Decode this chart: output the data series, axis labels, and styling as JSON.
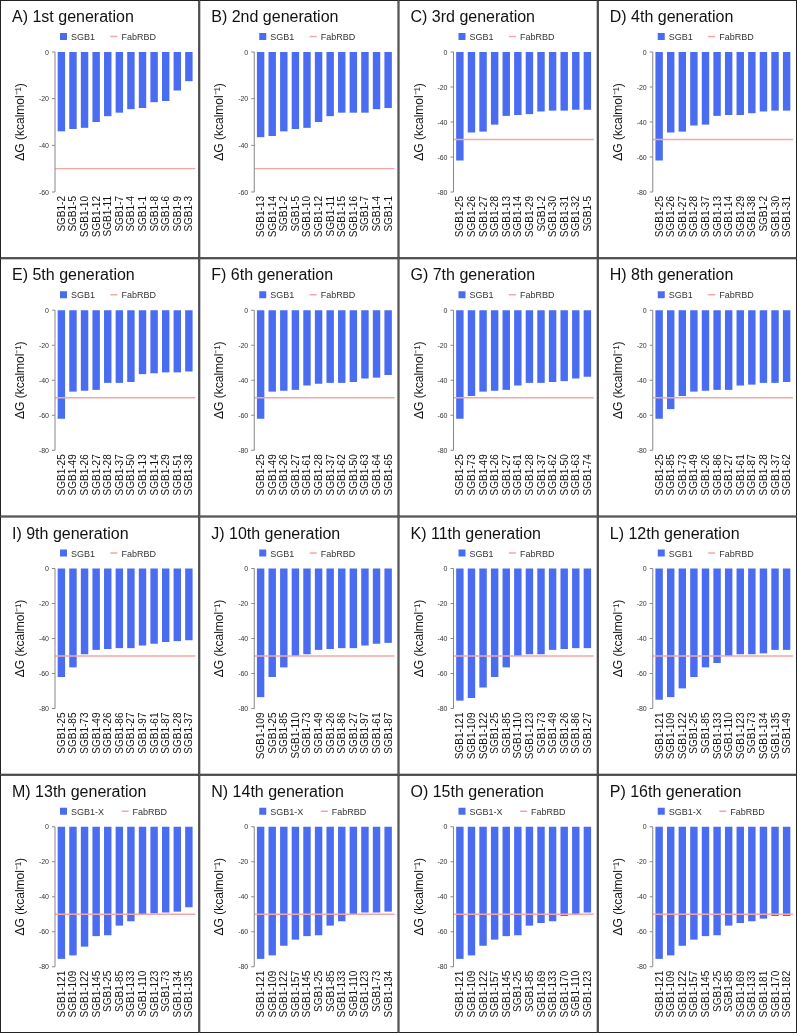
{
  "chart_data": [
    {
      "type": "bar",
      "title": "A) 1st generation",
      "ylabel": "ΔG (kcalmol⁻¹)",
      "legend": "top",
      "categories": [
        "SGB1-2",
        "SGB1-5",
        "SGB1-10",
        "SGB1-12",
        "SGB1-11",
        "SGB1-7",
        "SGB1-4",
        "SGB1-1",
        "SGB1-8",
        "SGB1-6",
        "SGB1-9",
        "SGB1-3"
      ],
      "series": [
        {
          "name": "SGB1",
          "color": "#4a6cf0",
          "values": [
            -34,
            -33,
            -32.5,
            -30,
            -27.5,
            -26,
            -24.5,
            -24,
            -21.5,
            -21,
            -16.5,
            -12.5
          ]
        }
      ],
      "ylim": [
        -60,
        0
      ],
      "yticks": [
        0,
        -20,
        -40,
        -60
      ],
      "ref_lines": [
        {
          "axis": "y",
          "value": -50,
          "label": "FabRBD",
          "color": "#f4a6a6"
        }
      ]
    },
    {
      "type": "bar",
      "title": "B) 2nd generation",
      "ylabel": "ΔG (kcalmol⁻¹)",
      "legend": "top",
      "categories": [
        "SGB1-13",
        "SGB1-14",
        "SGB1-2",
        "SGB1-5",
        "SGB1-10",
        "SGB1-12",
        "SGB1-11",
        "SGB1-15",
        "SGB1-16",
        "SGB1-7",
        "SGB1-4",
        "SGB1-1"
      ],
      "series": [
        {
          "name": "SGB1",
          "color": "#4a6cf0",
          "values": [
            -36.5,
            -36,
            -34,
            -33,
            -32.5,
            -30,
            -27.5,
            -26,
            -26,
            -26,
            -24.5,
            -24
          ]
        }
      ],
      "ylim": [
        -60,
        0
      ],
      "yticks": [
        0,
        -20,
        -40,
        -60
      ],
      "ref_lines": [
        {
          "axis": "y",
          "value": -50,
          "label": "FabRBD",
          "color": "#f4a6a6"
        }
      ]
    },
    {
      "type": "bar",
      "title": "C) 3rd generation",
      "ylabel": "ΔG (kcalmol⁻¹)",
      "legend": "top",
      "categories": [
        "SGB1-25",
        "SGB1-26",
        "SGB1-27",
        "SGB1-28",
        "SGB1-13",
        "SGB1-14",
        "SGB1-29",
        "SGB1-2",
        "SGB1-30",
        "SGB1-31",
        "SGB1-32",
        "SGB1-5"
      ],
      "series": [
        {
          "name": "SGB1",
          "color": "#4a6cf0",
          "values": [
            -62,
            -46,
            -45.5,
            -41.5,
            -36.5,
            -36,
            -35.5,
            -34,
            -33.5,
            -33.5,
            -33,
            -33
          ]
        }
      ],
      "ylim": [
        -80,
        0
      ],
      "yticks": [
        0,
        -20,
        -40,
        -60,
        -80
      ],
      "ref_lines": [
        {
          "axis": "y",
          "value": -50,
          "label": "FabRBD",
          "color": "#f4a6a6"
        }
      ]
    },
    {
      "type": "bar",
      "title": "D) 4th generation",
      "ylabel": "ΔG (kcalmol⁻¹)",
      "legend": "top",
      "categories": [
        "SGB1-25",
        "SGB1-26",
        "SGB1-27",
        "SGB1-28",
        "SGB1-37",
        "SGB1-13",
        "SGB1-14",
        "SGB1-29",
        "SGB1-38",
        "SGB1-2",
        "SGB1-30",
        "SGB1-31"
      ],
      "series": [
        {
          "name": "SGB1",
          "color": "#4a6cf0",
          "values": [
            -62,
            -46,
            -45.5,
            -42,
            -41.5,
            -36.5,
            -36,
            -36,
            -35,
            -34,
            -33.5,
            -33.5
          ]
        }
      ],
      "ylim": [
        -80,
        0
      ],
      "yticks": [
        0,
        -20,
        -40,
        -60,
        -80
      ],
      "ref_lines": [
        {
          "axis": "y",
          "value": -50,
          "label": "FabRBD",
          "color": "#f4a6a6"
        }
      ]
    },
    {
      "type": "bar",
      "title": "E) 5th generation",
      "ylabel": "ΔG (kcalmol⁻¹)",
      "legend": "top",
      "categories": [
        "SGB1-25",
        "SGB1-49",
        "SGB1-26",
        "SGB1-27",
        "SGB1-28",
        "SGB1-37",
        "SGB1-50",
        "SGB1-13",
        "SGB1-14",
        "SGB1-29",
        "SGB1-51",
        "SGB1-38"
      ],
      "series": [
        {
          "name": "SGB1",
          "color": "#4a6cf0",
          "values": [
            -62,
            -46.5,
            -46,
            -45.5,
            -41.5,
            -41.5,
            -41,
            -36.5,
            -36,
            -35.5,
            -35.5,
            -35
          ]
        }
      ],
      "ylim": [
        -80,
        0
      ],
      "yticks": [
        0,
        -20,
        -40,
        -60,
        -80
      ],
      "ref_lines": [
        {
          "axis": "y",
          "value": -50,
          "label": "FabRBD",
          "color": "#f4a6a6"
        }
      ]
    },
    {
      "type": "bar",
      "title": "F) 6th generation",
      "ylabel": "ΔG (kcalmol⁻¹)",
      "legend": "top",
      "categories": [
        "SGB1-25",
        "SGB1-49",
        "SGB1-26",
        "SGB1-27",
        "SGB1-61",
        "SGB1-28",
        "SGB1-37",
        "SGB1-62",
        "SGB1-50",
        "SGB1-63",
        "SGB1-64",
        "SGB1-65"
      ],
      "series": [
        {
          "name": "SGB1",
          "color": "#4a6cf0",
          "values": [
            -62,
            -46.5,
            -46,
            -45.5,
            -43,
            -42,
            -41.5,
            -41.5,
            -41,
            -39,
            -38.5,
            -37
          ]
        }
      ],
      "ylim": [
        -80,
        0
      ],
      "yticks": [
        0,
        -20,
        -40,
        -60,
        -80
      ],
      "ref_lines": [
        {
          "axis": "y",
          "value": -50,
          "label": "FabRBD",
          "color": "#f4a6a6"
        }
      ]
    },
    {
      "type": "bar",
      "title": "G) 7th generation",
      "ylabel": "ΔG (kcalmol⁻¹)",
      "legend": "top",
      "categories": [
        "SGB1-25",
        "SGB1-73",
        "SGB1-49",
        "SGB1-26",
        "SGB1-27",
        "SGB1-61",
        "SGB1-28",
        "SGB1-37",
        "SGB1-62",
        "SGB1-50",
        "SGB1-63",
        "SGB1-74"
      ],
      "series": [
        {
          "name": "SGB1",
          "color": "#4a6cf0",
          "values": [
            -62,
            -49,
            -46.5,
            -46,
            -45.5,
            -43,
            -41.5,
            -41.5,
            -41,
            -40.5,
            -39,
            -38
          ]
        }
      ],
      "ylim": [
        -80,
        0
      ],
      "yticks": [
        0,
        -20,
        -40,
        -60,
        -80
      ],
      "ref_lines": [
        {
          "axis": "y",
          "value": -50,
          "label": "FabRBD",
          "color": "#f4a6a6"
        }
      ]
    },
    {
      "type": "bar",
      "title": "H) 8th generation",
      "ylabel": "ΔG (kcalmol⁻¹)",
      "legend": "top",
      "categories": [
        "SGB1-25",
        "SGB1-85",
        "SGB1-73",
        "SGB1-49",
        "SGB1-26",
        "SGB1-86",
        "SGB1-27",
        "SGB1-61",
        "SGB1-87",
        "SGB1-28",
        "SGB1-37",
        "SGB1-62"
      ],
      "series": [
        {
          "name": "SGB1",
          "color": "#4a6cf0",
          "values": [
            -62,
            -56.5,
            -49,
            -46.5,
            -46,
            -45.5,
            -45.5,
            -43,
            -42.5,
            -41.5,
            -41.5,
            -41
          ]
        }
      ],
      "ylim": [
        -80,
        0
      ],
      "yticks": [
        0,
        -20,
        -40,
        -60,
        -80
      ],
      "ref_lines": [
        {
          "axis": "y",
          "value": -50,
          "label": "FabRBD",
          "color": "#f4a6a6"
        }
      ]
    },
    {
      "type": "bar",
      "title": "I) 9th generation",
      "ylabel": "ΔG (kcalmol⁻¹)",
      "legend": "top",
      "categories": [
        "SGB1-25",
        "SGB1-85",
        "SGB1-73",
        "SGB1-49",
        "SGB1-26",
        "SGB1-86",
        "SGB1-27",
        "SGB1-97",
        "SGB1-61",
        "SGB1-87",
        "SGB1-28",
        "SGB1-37"
      ],
      "series": [
        {
          "name": "SGB1",
          "color": "#4a6cf0",
          "values": [
            -62,
            -56.5,
            -49,
            -46.5,
            -46,
            -45.5,
            -45.5,
            -44,
            -43,
            -42,
            -41.5,
            -41
          ]
        }
      ],
      "ylim": [
        -80,
        0
      ],
      "yticks": [
        0,
        -20,
        -40,
        -60,
        -80
      ],
      "ref_lines": [
        {
          "axis": "y",
          "value": -50,
          "label": "FabRBD",
          "color": "#f4a6a6"
        }
      ]
    },
    {
      "type": "bar",
      "title": "J) 10th generation",
      "ylabel": "ΔG (kcalmol⁻¹)",
      "legend": "top",
      "categories": [
        "SGB1-109",
        "SGB1-25",
        "SGB1-85",
        "SGB1-110",
        "SGB1-73",
        "SGB1-49",
        "SGB1-26",
        "SGB1-86",
        "SGB1-27",
        "SGB1-97",
        "SGB1-61",
        "SGB1-87"
      ],
      "series": [
        {
          "name": "SGB1",
          "color": "#4a6cf0",
          "values": [
            -73.5,
            -62,
            -56.5,
            -50,
            -49,
            -46.5,
            -46,
            -45.5,
            -45.5,
            -44,
            -43,
            -42.5
          ]
        }
      ],
      "ylim": [
        -80,
        0
      ],
      "yticks": [
        0,
        -20,
        -40,
        -60,
        -80
      ],
      "ref_lines": [
        {
          "axis": "y",
          "value": -50,
          "label": "FabRBD",
          "color": "#f4a6a6"
        }
      ]
    },
    {
      "type": "bar",
      "title": "K) 11th generation",
      "ylabel": "ΔG (kcalmol⁻¹)",
      "legend": "top",
      "categories": [
        "SGB1-121",
        "SGB1-109",
        "SGB1-122",
        "SGB1-25",
        "SGB1-85",
        "SGB1-110",
        "SGB1-123",
        "SGB1-73",
        "SGB1-49",
        "SGB1-26",
        "SGB1-86",
        "SGB1-27"
      ],
      "series": [
        {
          "name": "SGB1",
          "color": "#4a6cf0",
          "values": [
            -75.5,
            -74,
            -68,
            -62,
            -56.5,
            -50,
            -49,
            -49,
            -46.5,
            -46,
            -45.5,
            -45.5
          ]
        }
      ],
      "ylim": [
        -80,
        0
      ],
      "yticks": [
        0,
        -20,
        -40,
        -60,
        -80
      ],
      "ref_lines": [
        {
          "axis": "y",
          "value": -50,
          "label": "FabRBD",
          "color": "#f4a6a6"
        }
      ]
    },
    {
      "type": "bar",
      "title": "L) 12th generation",
      "ylabel": "ΔG (kcalmol⁻¹)",
      "legend": "top",
      "categories": [
        "SGB1-121",
        "SGB1-109",
        "SGB1-122",
        "SGB1-25",
        "SGB1-85",
        "SGB1-133",
        "SGB1-110",
        "SGB1-123",
        "SGB1-73",
        "SGB1-134",
        "SGB1-135",
        "SGB1-49"
      ],
      "series": [
        {
          "name": "SGB1",
          "color": "#4a6cf0",
          "values": [
            -75,
            -73.5,
            -68.5,
            -62,
            -56.5,
            -54,
            -50,
            -49,
            -49,
            -48.5,
            -46.5,
            -46.5
          ]
        }
      ],
      "ylim": [
        -80,
        0
      ],
      "yticks": [
        0,
        -20,
        -40,
        -60,
        -80
      ],
      "ref_lines": [
        {
          "axis": "y",
          "value": -50,
          "label": "FabRBD",
          "color": "#f4a6a6"
        }
      ]
    },
    {
      "type": "bar",
      "title": "M) 13th generation",
      "ylabel": "ΔG (kcalmol⁻¹)",
      "legend": "top",
      "categories": [
        "SGB1-121",
        "SGB1-109",
        "SGB1-122",
        "SGB1-145",
        "SGB1-25",
        "SGB1-85",
        "SGB1-133",
        "SGB1-110",
        "SGB1-123",
        "SGB1-73",
        "SGB1-134",
        "SGB1-135"
      ],
      "series": [
        {
          "name": "SGB1-X",
          "color": "#4a6cf0",
          "values": [
            -75.5,
            -73.5,
            -68.5,
            -62.5,
            -62,
            -56.5,
            -54,
            -50,
            -49.5,
            -49,
            -48.5,
            -46
          ]
        }
      ],
      "ylim": [
        -80,
        0
      ],
      "yticks": [
        0,
        -20,
        -40,
        -60,
        -80
      ],
      "ref_lines": [
        {
          "axis": "y",
          "value": -50,
          "label": "FabRBD",
          "color": "#f4a6a6"
        }
      ]
    },
    {
      "type": "bar",
      "title": "N) 14th generation",
      "ylabel": "ΔG (kcalmol⁻¹)",
      "legend": "top",
      "categories": [
        "SGB1-121",
        "SGB1-109",
        "SGB1-122",
        "SGB1-157",
        "SGB1-145",
        "SGB1-25",
        "SGB1-85",
        "SGB1-133",
        "SGB1-110",
        "SGB1-123",
        "SGB1-73",
        "SGB1-134"
      ],
      "series": [
        {
          "name": "SGB1-X",
          "color": "#4a6cf0",
          "values": [
            -75.5,
            -73.5,
            -68,
            -64.5,
            -62.5,
            -62,
            -56.5,
            -54,
            -50,
            -49,
            -49,
            -48.5
          ]
        }
      ],
      "ylim": [
        -80,
        0
      ],
      "yticks": [
        0,
        -20,
        -40,
        -60,
        -80
      ],
      "ref_lines": [
        {
          "axis": "y",
          "value": -50,
          "label": "FabRBD",
          "color": "#f4a6a6"
        }
      ]
    },
    {
      "type": "bar",
      "title": "O) 15th generation",
      "ylabel": "ΔG (kcalmol⁻¹)",
      "legend": "top",
      "categories": [
        "SGB1-121",
        "SGB1-109",
        "SGB1-122",
        "SGB1-157",
        "SGB1-145",
        "SGB1-25",
        "SGB1-85",
        "SGB1-169",
        "SGB1-133",
        "SGB1-170",
        "SGB1-110",
        "SGB1-123"
      ],
      "series": [
        {
          "name": "SGB1-X",
          "color": "#4a6cf0",
          "values": [
            -75.5,
            -73.5,
            -68,
            -64.5,
            -62.5,
            -62,
            -56.5,
            -55,
            -54,
            -51,
            -50.5,
            -49
          ]
        }
      ],
      "ylim": [
        -80,
        0
      ],
      "yticks": [
        0,
        -20,
        -40,
        -60,
        -80
      ],
      "ref_lines": [
        {
          "axis": "y",
          "value": -50,
          "label": "FabRBD",
          "color": "#f4a6a6"
        }
      ]
    },
    {
      "type": "bar",
      "title": "P) 16th generation",
      "ylabel": "ΔG (kcalmol⁻¹)",
      "legend": "top",
      "categories": [
        "SGB1-121",
        "SGB1-109",
        "SGB1-122",
        "SGB1-157",
        "SGB1-145",
        "SGB1-25",
        "SGB1-85",
        "SGB1-169",
        "SGB1-133",
        "SGB1-181",
        "SGB1-170",
        "SGB1-182"
      ],
      "series": [
        {
          "name": "SGB1-X",
          "color": "#4a6cf0",
          "values": [
            -75.5,
            -73.5,
            -68,
            -64.5,
            -62.5,
            -62,
            -56.5,
            -55,
            -54,
            -52.5,
            -51,
            -51
          ]
        }
      ],
      "ylim": [
        -80,
        0
      ],
      "yticks": [
        0,
        -20,
        -40,
        -60,
        -80
      ],
      "ref_lines": [
        {
          "axis": "y",
          "value": -50,
          "label": "FabRBD",
          "color": "#f4a6a6"
        }
      ]
    }
  ]
}
